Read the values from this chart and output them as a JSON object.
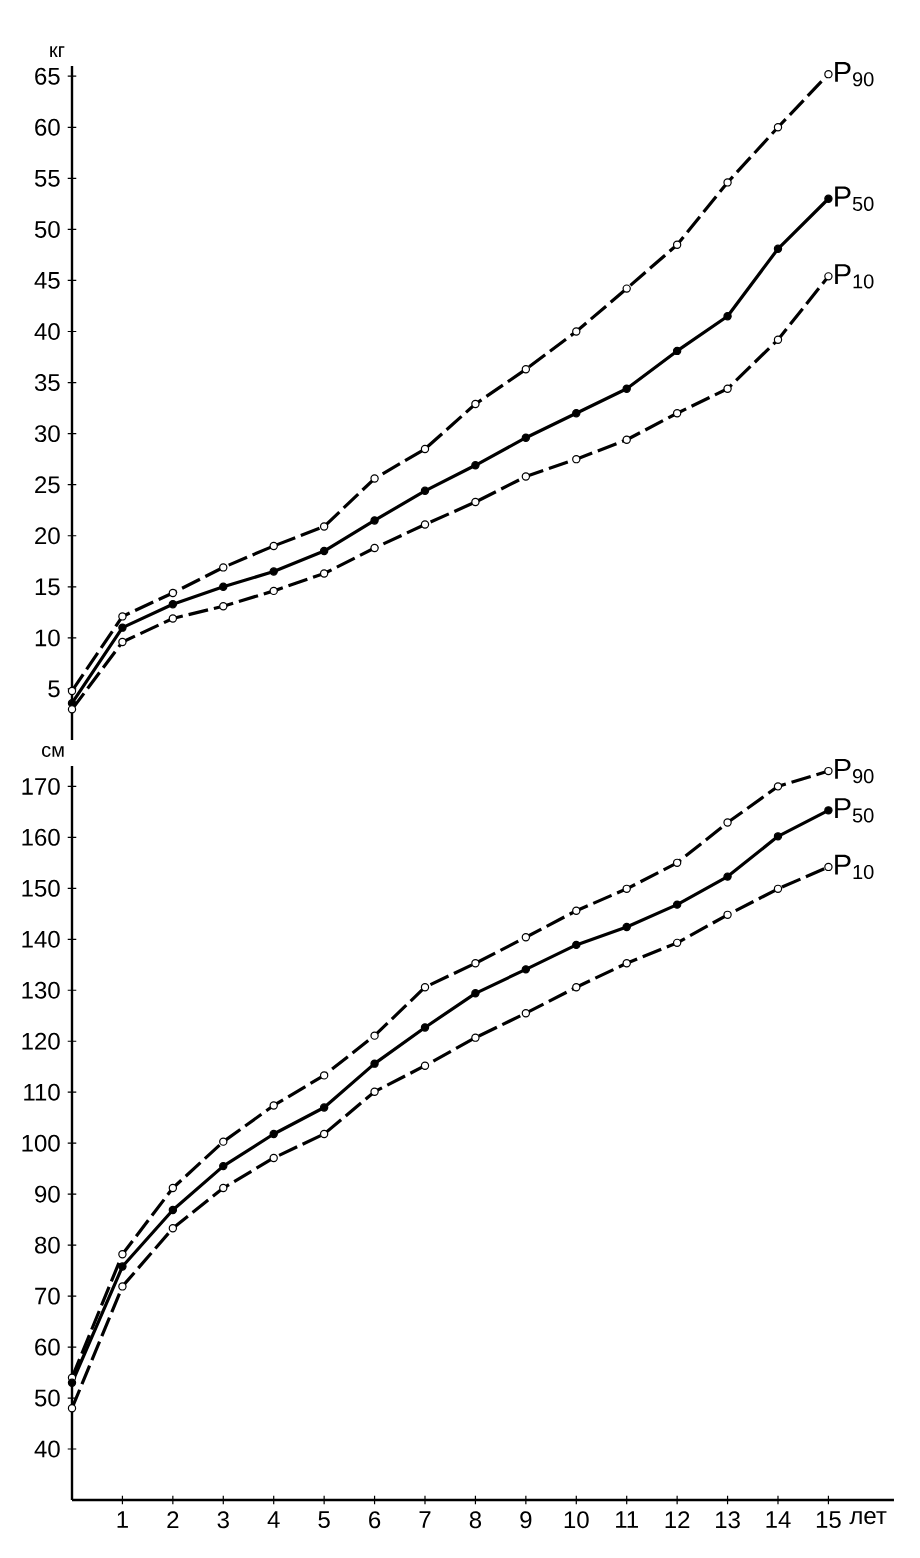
{
  "chart_data": [
    {
      "type": "line",
      "ylabel": "кг",
      "x": [
        0,
        1,
        2,
        3,
        4,
        5,
        6,
        7,
        8,
        9,
        10,
        11,
        12,
        13,
        14,
        15
      ],
      "ylim": [
        0,
        66
      ],
      "yticks": [
        5,
        10,
        15,
        20,
        25,
        30,
        35,
        40,
        45,
        50,
        55,
        60,
        65
      ],
      "tick_labels": "y",
      "marker": "circle",
      "series": [
        {
          "name": "P$_{90}$",
          "color": "#000000",
          "line_style": "dashed",
          "values": [
            4.8,
            12.1,
            14.4,
            16.9,
            19,
            20.9,
            25.6,
            28.5,
            32.9,
            36.3,
            40,
            44.2,
            48.5,
            54.6,
            60,
            65.2
          ]
        },
        {
          "name": "P$_{50}$",
          "color": "#000000",
          "line_style": "solid",
          "values": [
            3.6,
            11,
            13.3,
            15,
            16.5,
            18.5,
            21.5,
            24.4,
            26.9,
            29.6,
            32,
            34.4,
            38.1,
            41.5,
            48.1,
            53
          ]
        },
        {
          "name": "P$_{10}$",
          "color": "#000000",
          "line_style": "dashed",
          "values": [
            3,
            9.6,
            11.9,
            13.1,
            14.6,
            16.3,
            18.8,
            21.1,
            23.3,
            25.8,
            27.5,
            29.4,
            32,
            34.4,
            39.2,
            45.4
          ]
        }
      ]
    },
    {
      "type": "line",
      "ylabel": "см",
      "xlabel": "лет",
      "x": [
        0,
        1,
        2,
        3,
        4,
        5,
        6,
        7,
        8,
        9,
        10,
        11,
        12,
        13,
        14,
        15
      ],
      "xlim": [
        0,
        16.3
      ],
      "ylim": [
        30,
        174
      ],
      "xticks": [
        1,
        2,
        3,
        4,
        5,
        6,
        7,
        8,
        9,
        10,
        11,
        12,
        13,
        14,
        15
      ],
      "yticks": [
        40,
        50,
        60,
        70,
        80,
        90,
        100,
        110,
        120,
        130,
        140,
        150,
        160,
        170
      ],
      "marker": "circle",
      "series": [
        {
          "name": "P$_{90}$",
          "color": "#000000",
          "line_style": "dashed",
          "values": [
            54,
            78.2,
            91.2,
            100.3,
            107.4,
            113.3,
            121.1,
            130.6,
            135.3,
            140.4,
            145.6,
            149.9,
            155,
            162.9,
            170,
            173
          ]
        },
        {
          "name": "P$_{50}$",
          "color": "#000000",
          "line_style": "solid",
          "values": [
            53,
            75.8,
            86.9,
            95.5,
            101.8,
            107,
            115.6,
            122.7,
            129.4,
            134.1,
            138.9,
            142.4,
            146.8,
            152.3,
            160.2,
            165.3
          ]
        },
        {
          "name": "P$_{10}$",
          "color": "#000000",
          "line_style": "dashed",
          "values": [
            48,
            71.9,
            83.3,
            91.2,
            97.1,
            101.8,
            110.1,
            115.2,
            120.7,
            125.5,
            130.6,
            135.3,
            139.3,
            144.8,
            149.9,
            154.2
          ]
        }
      ]
    }
  ]
}
